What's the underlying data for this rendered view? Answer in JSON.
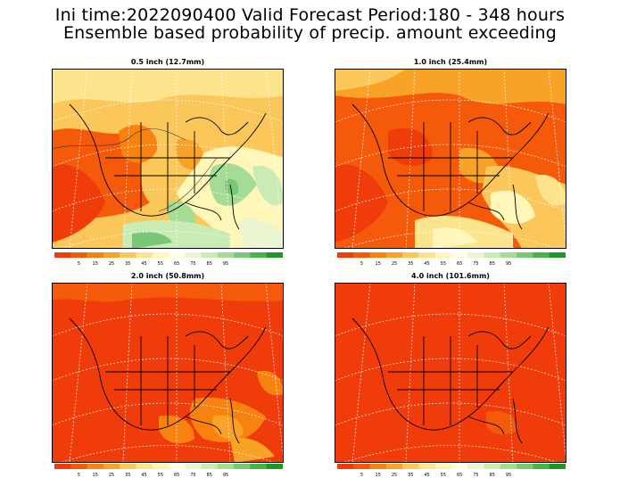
{
  "header": {
    "line1": "Ini time:2022090400  Valid Forecast Period:180 - 348 hours",
    "line2": "Ensemble based probability of precip. amount exceeding"
  },
  "panels": [
    {
      "id": "p1",
      "title": "0.5 inch (12.7mm)"
    },
    {
      "id": "p2",
      "title": "1.0 inch (25.4mm)"
    },
    {
      "id": "p3",
      "title": "2.0 inch (50.8mm)"
    },
    {
      "id": "p4",
      "title": "4.0 inch (101.6mm)"
    }
  ],
  "colorbar": {
    "labels": [
      "5",
      "15",
      "25",
      "35",
      "45",
      "55",
      "65",
      "75",
      "85",
      "95"
    ],
    "colors": [
      "#f03c0a",
      "#f55a0a",
      "#f7820f",
      "#f9a228",
      "#fbc65a",
      "#fce48c",
      "#fff6b8",
      "#ffffe6",
      "#eaf6d2",
      "#c8ecb4",
      "#a4dc96",
      "#78c878",
      "#46b446",
      "#1e9628"
    ]
  },
  "palette": {
    "deep_red": "#f03c0a",
    "orange": "#f7820f",
    "light_orange": "#fbc65a",
    "yellow": "#fff6b8",
    "cream": "#ffffe6",
    "light_green": "#c8ecb4",
    "green": "#78c878"
  }
}
